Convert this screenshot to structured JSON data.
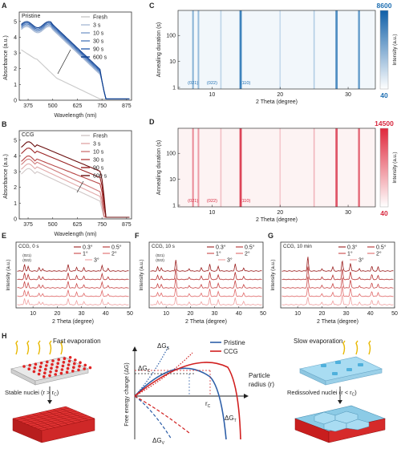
{
  "panels": {
    "A": {
      "letter": "A",
      "label": "Pristine",
      "xlabel": "Wavelength (nm)",
      "ylabel": "Absorbance (a.u.)",
      "xticks": [
        "375",
        "500",
        "625",
        "750",
        "875"
      ],
      "yticks": [
        "0",
        "1",
        "2",
        "3",
        "4",
        "5"
      ],
      "legend": [
        "Fresh",
        "3 s",
        "10 s",
        "30 s",
        "90 s",
        "600 s"
      ],
      "colors": [
        "#c9c9c9",
        "#aabbd6",
        "#7f9fcc",
        "#5680bf",
        "#2e62b0",
        "#0f3f8f"
      ]
    },
    "B": {
      "letter": "B",
      "label": "CCG",
      "xlabel": "Wavelength (nm)",
      "ylabel": "Absorbance (a.u.)",
      "xticks": [
        "375",
        "500",
        "625",
        "750",
        "875"
      ],
      "yticks": [
        "0",
        "1",
        "2",
        "3",
        "4",
        "5"
      ],
      "legend": [
        "Fresh",
        "3 s",
        "10 s",
        "30 s",
        "90 s",
        "600 s"
      ],
      "colors": [
        "#d0c7c7",
        "#e1a9a9",
        "#cf7b7b",
        "#b84848",
        "#9a2222",
        "#6a0d0d"
      ]
    },
    "C": {
      "letter": "C",
      "ylabel": "Annealing duration (s)",
      "xlabel": "2 Theta (degree)",
      "xticks": [
        "10",
        "20",
        "30"
      ],
      "yticks": [
        "1",
        "10",
        "100"
      ],
      "peaks": [
        "(021)",
        "(022)",
        "(110)"
      ],
      "cbar_max": "8600",
      "cbar_min": "40",
      "cbar_label": "Intensity (a.u.)",
      "color": "#1f6fb2"
    },
    "D": {
      "letter": "D",
      "ylabel": "Annealing duration (s)",
      "xlabel": "2 Theta (degree)",
      "xticks": [
        "10",
        "20",
        "30"
      ],
      "yticks": [
        "1",
        "10",
        "100"
      ],
      "peaks": [
        "(021)",
        "(022)",
        "(110)"
      ],
      "cbar_max": "14500",
      "cbar_min": "40",
      "cbar_label": "Intensity (a.u.)",
      "color": "#d7263d"
    },
    "E": {
      "letter": "E",
      "label": "CCG, 0 s",
      "peaks": [
        "(021)",
        "(022)"
      ]
    },
    "F": {
      "letter": "F",
      "label": "CCG, 10 s",
      "peaks": [
        "(021)",
        "(022)"
      ]
    },
    "G": {
      "letter": "G",
      "label": "CCG, 10 min",
      "peaks": []
    },
    "xrd_common": {
      "xlabel": "2 Theta (degree)",
      "ylabel": "Intensity (a.u.)",
      "xticks": [
        "10",
        "20",
        "30",
        "40",
        "50"
      ],
      "legend": [
        "0.3°",
        "0.5°",
        "1°",
        "2°",
        "3°"
      ]
    },
    "H": {
      "letter": "H",
      "fast": "Fast evaporation",
      "slow": "Slow evaporation",
      "stable": "Stable nuclei (r > r",
      "stable_sub": "C",
      "redis": "Redissolved nuclei (r < r",
      "redis_sub": "C",
      "close": ")",
      "yaxis": "Free energy change (ΔG)",
      "xaxis1": "Particle",
      "xaxis2": "radius (r)",
      "dGs": "ΔG",
      "dGs_sub": "S",
      "dGc": "ΔG",
      "dGc_sub": "C",
      "dGv": "ΔG",
      "dGv_sub": "V",
      "dGt": "ΔG",
      "dGt_sub": "T",
      "rc": "r",
      "rc_sub": "C",
      "legend": [
        "Pristine",
        "CCG"
      ],
      "pristine_color": "#2e5fa8",
      "ccg_color": "#d11f1f"
    }
  }
}
